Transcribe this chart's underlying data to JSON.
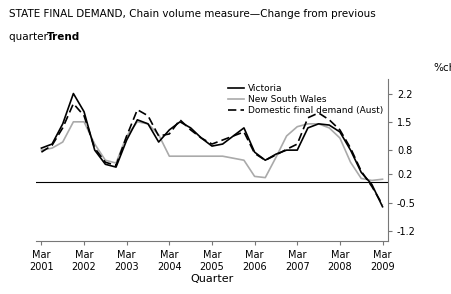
{
  "title_line1": "STATE FINAL DEMAND, Chain volume measure—Change from previous",
  "title_line2_regular": "quarter: ",
  "title_line2_bold": "Trend",
  "xlabel": "Quarter",
  "ylabel": "%change",
  "yticks": [
    -1.2,
    -0.5,
    0.2,
    0.8,
    1.5,
    2.2
  ],
  "xtick_labels": [
    "Mar\n2001",
    "Mar\n2002",
    "Mar\n2003",
    "Mar\n2004",
    "Mar\n2005",
    "Mar\n2006",
    "Mar\n2007",
    "Mar\n2008",
    "Mar\n2009"
  ],
  "ylim": [
    -1.45,
    2.55
  ],
  "xlim": [
    -0.5,
    32.5
  ],
  "quarters": [
    0,
    1,
    2,
    3,
    4,
    5,
    6,
    7,
    8,
    9,
    10,
    11,
    12,
    13,
    14,
    15,
    16,
    17,
    18,
    19,
    20,
    21,
    22,
    23,
    24,
    25,
    26,
    27,
    28,
    29,
    30,
    31,
    32
  ],
  "victoria": [
    0.85,
    0.95,
    1.45,
    2.2,
    1.75,
    0.8,
    0.45,
    0.38,
    1.05,
    1.55,
    1.45,
    1.0,
    1.3,
    1.5,
    1.35,
    1.1,
    0.9,
    0.95,
    1.15,
    1.35,
    0.75,
    0.55,
    0.7,
    0.8,
    0.8,
    1.35,
    1.45,
    1.42,
    1.25,
    0.8,
    0.25,
    -0.05,
    -0.6
  ],
  "nsw": [
    0.8,
    0.85,
    1.0,
    1.5,
    1.5,
    0.95,
    0.55,
    0.48,
    1.15,
    1.5,
    1.45,
    1.18,
    0.65,
    0.65,
    0.65,
    0.65,
    0.65,
    0.65,
    0.6,
    0.55,
    0.15,
    0.12,
    0.62,
    1.15,
    1.38,
    1.45,
    1.45,
    1.35,
    1.1,
    0.5,
    0.1,
    0.05,
    0.08
  ],
  "domestic": [
    0.75,
    0.92,
    1.35,
    1.95,
    1.65,
    0.85,
    0.5,
    0.42,
    1.15,
    1.8,
    1.65,
    1.15,
    1.2,
    1.55,
    1.3,
    1.1,
    0.95,
    1.05,
    1.15,
    1.25,
    0.72,
    0.55,
    0.68,
    0.82,
    0.95,
    1.6,
    1.72,
    1.55,
    1.3,
    0.85,
    0.28,
    -0.1,
    -0.55
  ],
  "victoria_color": "#000000",
  "nsw_color": "#aaaaaa",
  "domestic_color": "#000000",
  "zero_line_color": "#000000",
  "text_color": "#000000",
  "bg_color": "#ffffff",
  "legend_victoria": "Victoria",
  "legend_nsw": "New South Wales",
  "legend_domestic": "Domestic final demand (Aust)"
}
